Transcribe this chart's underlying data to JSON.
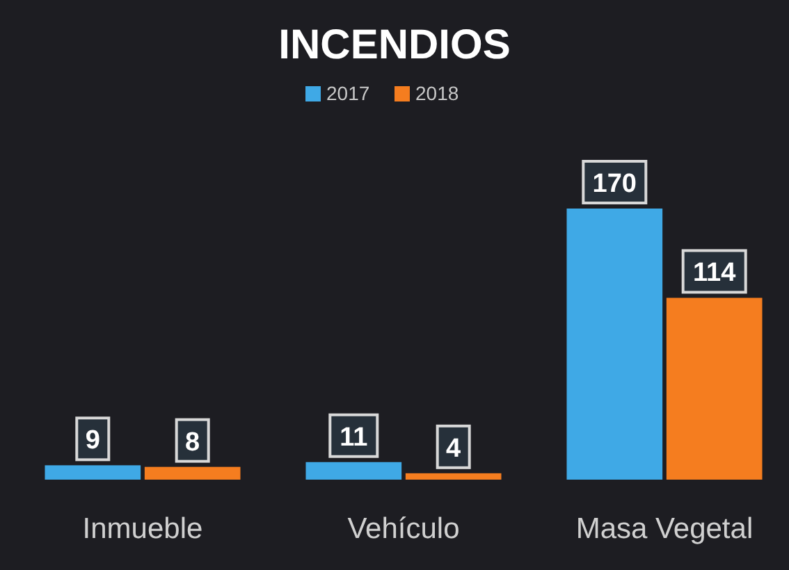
{
  "chart_data": {
    "type": "bar",
    "title": "INCENDIOS",
    "categories": [
      "Inmueble",
      "Vehículo",
      "Masa Vegetal"
    ],
    "series": [
      {
        "name": "2017",
        "color": "#3fa9e6",
        "values": [
          9,
          11,
          170
        ]
      },
      {
        "name": "2018",
        "color": "#f57d1f",
        "values": [
          8,
          4,
          114
        ]
      }
    ],
    "legend": "top",
    "data_labels": true
  }
}
